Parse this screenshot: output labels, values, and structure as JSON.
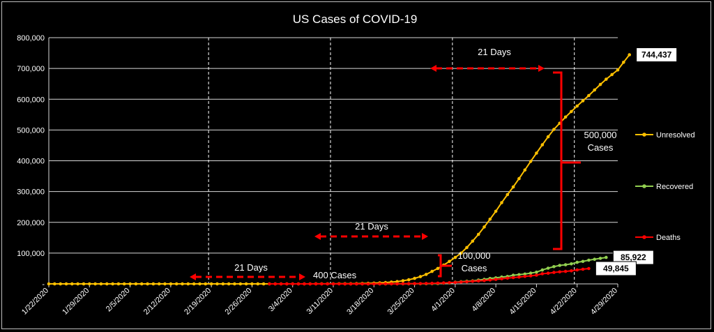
{
  "chart_data": {
    "type": "line",
    "title": "US Cases of COVID-19",
    "x_ticks": [
      "1/22/2020",
      "1/29/2020",
      "2/5/2020",
      "2/12/2020",
      "2/19/2020",
      "2/26/2020",
      "3/4/2020",
      "3/11/2020",
      "3/18/2020",
      "3/25/2020",
      "4/1/2020",
      "4/8/2020",
      "4/15/2020",
      "4/22/2020",
      "4/29/2020"
    ],
    "y_ticks": [
      "-",
      "100,000",
      "200,000",
      "300,000",
      "400,000",
      "500,000",
      "600,000",
      "700,000",
      "800,000"
    ],
    "ylim": [
      0,
      800000
    ],
    "x_start": "1/22/2020",
    "x_end": "4/29/2020",
    "gridlines": true,
    "legend_position": "right",
    "series": [
      {
        "name": "Unresolved",
        "color": "#FFC000",
        "start_date": "1/22/2020",
        "values": [
          1,
          1,
          2,
          2,
          5,
          5,
          5,
          5,
          5,
          6,
          7,
          8,
          11,
          11,
          11,
          12,
          12,
          12,
          12,
          12,
          12,
          13,
          13,
          14,
          14,
          14,
          14,
          14,
          14,
          14,
          14,
          15,
          15,
          15,
          16,
          16,
          25,
          25,
          27,
          30,
          40,
          46,
          52,
          57,
          81,
          106,
          160,
          205,
          252,
          329,
          451,
          573,
          694,
          1005,
          1469,
          1880,
          2534,
          3304,
          4300,
          6000,
          7400,
          10300,
          13400,
          18000,
          23500,
          30800,
          40600,
          50000,
          61000,
          73000,
          86000,
          100000,
          118000,
          139000,
          161000,
          185000,
          210000,
          236000,
          264000,
          290000,
          315000,
          342000,
          370000,
          398000,
          425000,
          452000,
          478000,
          502000,
          522000,
          542000,
          560000,
          578000,
          595000,
          612000,
          630000,
          648000,
          665000,
          680000,
          695000,
          720000,
          744437
        ],
        "end_label": "744,437"
      },
      {
        "name": "Recovered",
        "color": "#92D050",
        "start_date": "3/13/2020",
        "values": [
          0,
          0,
          0,
          0,
          50,
          100,
          106,
          108,
          125,
          147,
          171,
          178,
          348,
          361,
          681,
          869,
          1072,
          2462,
          3000,
          5500,
          7000,
          8500,
          9700,
          12500,
          14600,
          17400,
          19600,
          22100,
          24000,
          28200,
          30000,
          32000,
          35000,
          38000,
          45000,
          51000,
          56000,
          60000,
          62000,
          65000,
          70000,
          73000,
          77000,
          80000,
          83000,
          85922
        ],
        "end_label": "85,922"
      },
      {
        "name": "Deaths",
        "color": "#FF0000",
        "start_date": "2/29/2020",
        "values": [
          1,
          1,
          2,
          6,
          9,
          11,
          12,
          15,
          19,
          22,
          26,
          30,
          38,
          41,
          48,
          57,
          68,
          86,
          109,
          150,
          206,
          255,
          301,
          427,
          589,
          802,
          1050,
          1400,
          1900,
          2400,
          3100,
          3900,
          4800,
          6000,
          7100,
          8400,
          9600,
          10900,
          12600,
          14600,
          16600,
          18600,
          20500,
          22100,
          24300,
          26000,
          28300,
          32900,
          34600,
          37200,
          39000,
          40600,
          42400,
          45300,
          47600,
          49845
        ],
        "end_label": "49,845"
      }
    ],
    "annotations": {
      "days_label": "21 Days",
      "cases_400": "400 Cases",
      "cases_100k_1": "100,000",
      "cases_100k_2": "Cases",
      "cases_500k_1": "500,000",
      "cases_500k_2": "Cases"
    }
  }
}
